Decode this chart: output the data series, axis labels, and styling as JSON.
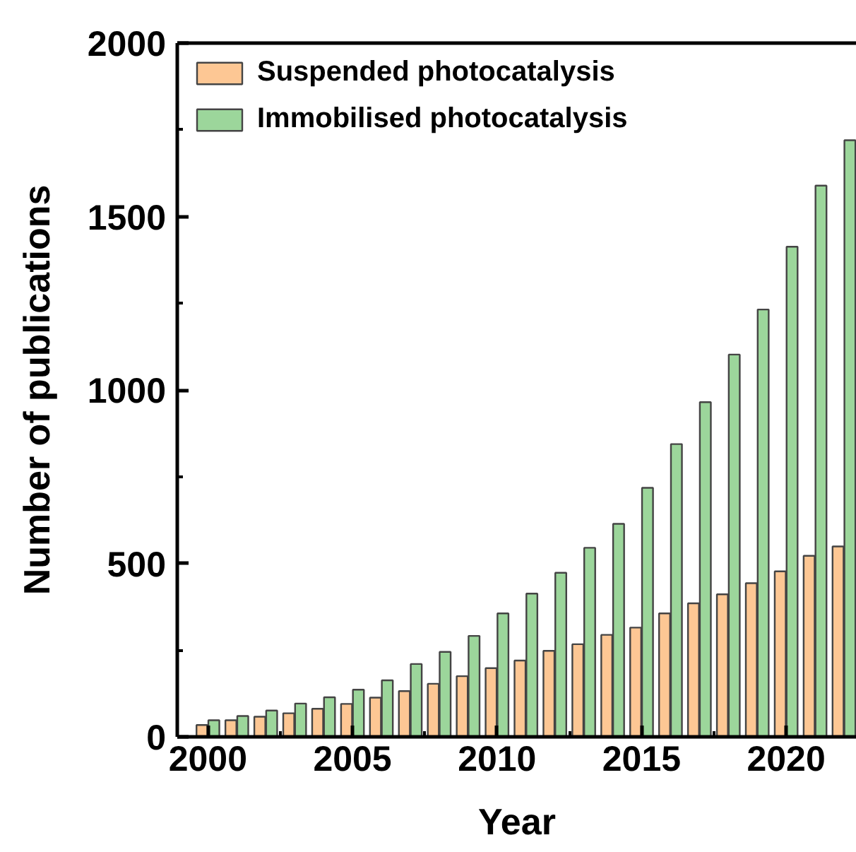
{
  "chart_data": {
    "type": "bar",
    "xlabel": "Year",
    "ylabel": "Number of publications",
    "x": [
      2000,
      2001,
      2002,
      2003,
      2004,
      2005,
      2006,
      2007,
      2008,
      2009,
      2010,
      2011,
      2012,
      2013,
      2014,
      2015,
      2016,
      2017,
      2018,
      2019,
      2020,
      2021,
      2022
    ],
    "xlim": [
      1998.94,
      2022.44
    ],
    "xticks": [
      2000,
      {
        "value": 2002.5,
        "label": null
      },
      2005,
      {
        "value": 2007.5,
        "label": null
      },
      2010,
      {
        "value": 2012.5,
        "label": null
      },
      2015,
      {
        "value": 2017.5,
        "label": null
      },
      2020
    ],
    "ylim": [
      0,
      2000
    ],
    "yticks": [
      0,
      {
        "value": 250,
        "label": null
      },
      500,
      {
        "value": 750,
        "label": null
      },
      1000,
      {
        "value": 1250,
        "label": null
      },
      1500,
      {
        "value": 1750,
        "label": null
      },
      2000
    ],
    "legend": "top left",
    "series": [
      {
        "name": "Suspended photocatalysis",
        "color": "#fdc794",
        "values": [
          34,
          48,
          58,
          68,
          81,
          95,
          113,
          132,
          153,
          175,
          198,
          220,
          248,
          267,
          294,
          315,
          356,
          385,
          411,
          443,
          477,
          522,
          549
        ]
      },
      {
        "name": "Immobilised photocatalysis",
        "color": "#9cd69b",
        "values": [
          48,
          60,
          76,
          96,
          114,
          136,
          163,
          210,
          245,
          291,
          356,
          413,
          473,
          545,
          614,
          718,
          844,
          965,
          1102,
          1232,
          1413,
          1589,
          1720
        ]
      }
    ]
  }
}
